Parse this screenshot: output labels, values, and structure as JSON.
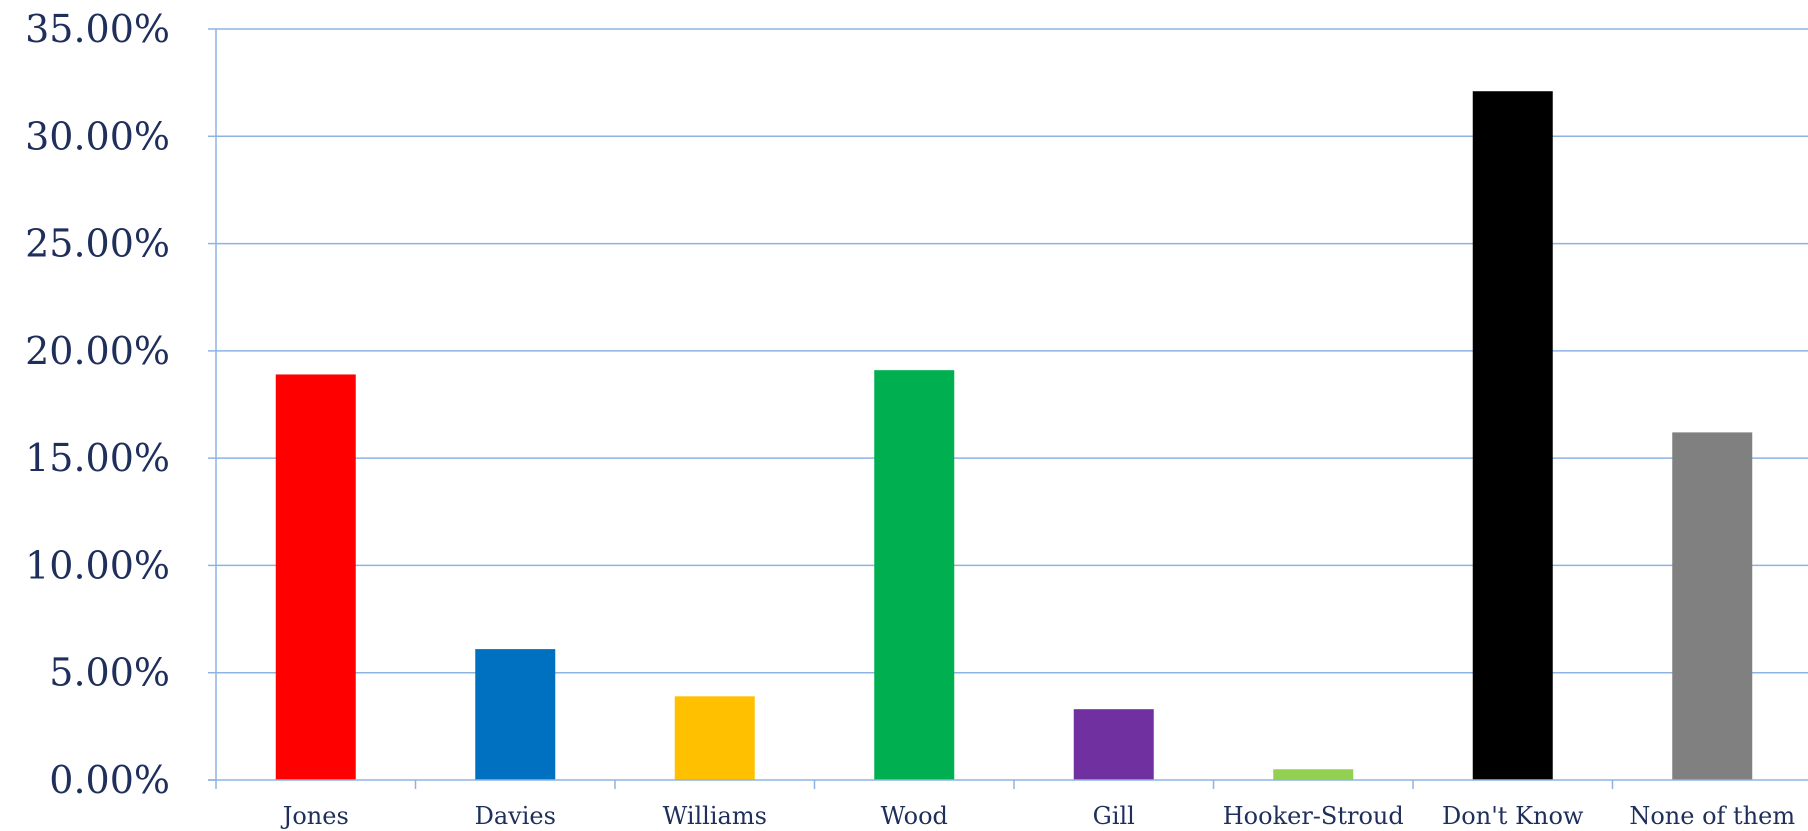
{
  "chart_data": {
    "type": "bar",
    "title": "",
    "xlabel": "",
    "ylabel": "",
    "categories": [
      "Jones",
      "Davies",
      "Williams",
      "Wood",
      "Gill",
      "Hooker-Stroud",
      "Don't Know",
      "None of them"
    ],
    "values": [
      18.9,
      6.1,
      3.9,
      19.1,
      3.3,
      0.5,
      32.1,
      16.2
    ],
    "ylim": [
      0,
      35
    ],
    "yticks": [
      0,
      5,
      10,
      15,
      20,
      25,
      30,
      35
    ],
    "ytick_labels": [
      "0.00%",
      "5.00%",
      "10.00%",
      "15.00%",
      "20.00%",
      "25.00%",
      "30.00%",
      "35.00%"
    ],
    "bar_colors": [
      "#ff0000",
      "#0070c0",
      "#ffc000",
      "#00b050",
      "#7030a0",
      "#92d050",
      "#000000",
      "#808080"
    ],
    "grid": true,
    "legend": "none"
  },
  "colors": {
    "gridline": "#8db3e2",
    "axis": "#8db3e2",
    "tick_text": "#1f2f5c"
  }
}
